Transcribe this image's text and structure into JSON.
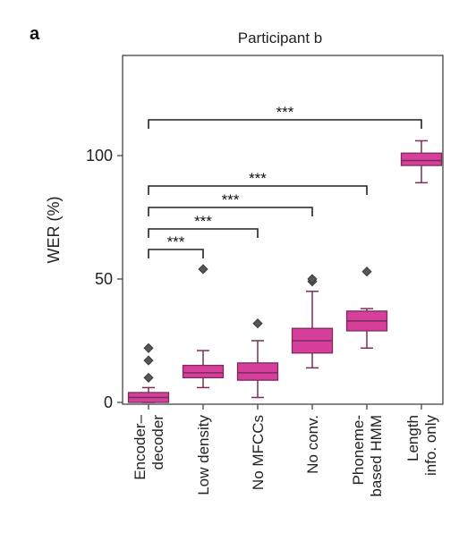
{
  "panel_letter": "a",
  "chart_data": {
    "type": "box",
    "title": "Participant b",
    "ylabel": "WER (%)",
    "xlabel": "",
    "ylim": [
      0,
      140
    ],
    "yticks": [
      0,
      50,
      100
    ],
    "grid": false,
    "color": "#d63f9b",
    "edge_color": "#7a2d5a",
    "categories": [
      [
        "Encoder–",
        "decoder"
      ],
      [
        "Low density"
      ],
      [
        "No MFCCs"
      ],
      [
        "No conv."
      ],
      [
        "Phoneme-",
        "based HMM"
      ],
      [
        "Length",
        "info. only"
      ]
    ],
    "boxes": [
      {
        "whislo": 0,
        "q1": 0,
        "med": 2,
        "q3": 4,
        "whishi": 6,
        "fliers": [
          10,
          17,
          22
        ]
      },
      {
        "whislo": 6,
        "q1": 10,
        "med": 12,
        "q3": 15,
        "whishi": 21,
        "fliers": [
          54
        ]
      },
      {
        "whislo": 2,
        "q1": 9,
        "med": 12,
        "q3": 16,
        "whishi": 25,
        "fliers": [
          32
        ]
      },
      {
        "whislo": 14,
        "q1": 20,
        "med": 25,
        "q3": 30,
        "whishi": 45,
        "fliers": [
          49,
          50
        ]
      },
      {
        "whislo": 22,
        "q1": 29,
        "med": 33,
        "q3": 37,
        "whishi": 38,
        "fliers": [
          53
        ]
      },
      {
        "whislo": 89,
        "q1": 96,
        "med": 98,
        "q3": 101,
        "whishi": 106,
        "fliers": []
      }
    ],
    "significance": [
      {
        "from": 0,
        "to": 5,
        "label": "***"
      },
      {
        "from": 0,
        "to": 4,
        "label": "***"
      },
      {
        "from": 0,
        "to": 3,
        "label": "***"
      },
      {
        "from": 0,
        "to": 2,
        "label": "***"
      },
      {
        "from": 0,
        "to": 1,
        "label": "***"
      }
    ]
  }
}
